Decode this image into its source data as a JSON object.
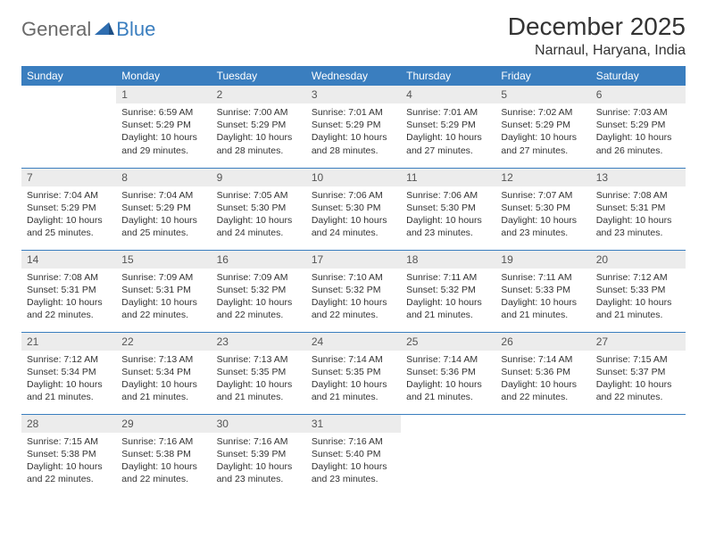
{
  "brand": {
    "part1": "General",
    "part2": "Blue"
  },
  "title": "December 2025",
  "location": "Narnaul, Haryana, India",
  "colors": {
    "header_bg": "#3a7ebf",
    "header_fg": "#ffffff",
    "daynum_bg": "#ececec",
    "row_border": "#3a7ebf",
    "logo_gray": "#6a6a6a",
    "logo_blue": "#3a7ebf"
  },
  "weekdays": [
    "Sunday",
    "Monday",
    "Tuesday",
    "Wednesday",
    "Thursday",
    "Friday",
    "Saturday"
  ],
  "weeks": [
    [
      {
        "n": "",
        "sr": "",
        "ss": "",
        "dl": ""
      },
      {
        "n": "1",
        "sr": "6:59 AM",
        "ss": "5:29 PM",
        "dl": "10 hours and 29 minutes."
      },
      {
        "n": "2",
        "sr": "7:00 AM",
        "ss": "5:29 PM",
        "dl": "10 hours and 28 minutes."
      },
      {
        "n": "3",
        "sr": "7:01 AM",
        "ss": "5:29 PM",
        "dl": "10 hours and 28 minutes."
      },
      {
        "n": "4",
        "sr": "7:01 AM",
        "ss": "5:29 PM",
        "dl": "10 hours and 27 minutes."
      },
      {
        "n": "5",
        "sr": "7:02 AM",
        "ss": "5:29 PM",
        "dl": "10 hours and 27 minutes."
      },
      {
        "n": "6",
        "sr": "7:03 AM",
        "ss": "5:29 PM",
        "dl": "10 hours and 26 minutes."
      }
    ],
    [
      {
        "n": "7",
        "sr": "7:04 AM",
        "ss": "5:29 PM",
        "dl": "10 hours and 25 minutes."
      },
      {
        "n": "8",
        "sr": "7:04 AM",
        "ss": "5:29 PM",
        "dl": "10 hours and 25 minutes."
      },
      {
        "n": "9",
        "sr": "7:05 AM",
        "ss": "5:30 PM",
        "dl": "10 hours and 24 minutes."
      },
      {
        "n": "10",
        "sr": "7:06 AM",
        "ss": "5:30 PM",
        "dl": "10 hours and 24 minutes."
      },
      {
        "n": "11",
        "sr": "7:06 AM",
        "ss": "5:30 PM",
        "dl": "10 hours and 23 minutes."
      },
      {
        "n": "12",
        "sr": "7:07 AM",
        "ss": "5:30 PM",
        "dl": "10 hours and 23 minutes."
      },
      {
        "n": "13",
        "sr": "7:08 AM",
        "ss": "5:31 PM",
        "dl": "10 hours and 23 minutes."
      }
    ],
    [
      {
        "n": "14",
        "sr": "7:08 AM",
        "ss": "5:31 PM",
        "dl": "10 hours and 22 minutes."
      },
      {
        "n": "15",
        "sr": "7:09 AM",
        "ss": "5:31 PM",
        "dl": "10 hours and 22 minutes."
      },
      {
        "n": "16",
        "sr": "7:09 AM",
        "ss": "5:32 PM",
        "dl": "10 hours and 22 minutes."
      },
      {
        "n": "17",
        "sr": "7:10 AM",
        "ss": "5:32 PM",
        "dl": "10 hours and 22 minutes."
      },
      {
        "n": "18",
        "sr": "7:11 AM",
        "ss": "5:32 PM",
        "dl": "10 hours and 21 minutes."
      },
      {
        "n": "19",
        "sr": "7:11 AM",
        "ss": "5:33 PM",
        "dl": "10 hours and 21 minutes."
      },
      {
        "n": "20",
        "sr": "7:12 AM",
        "ss": "5:33 PM",
        "dl": "10 hours and 21 minutes."
      }
    ],
    [
      {
        "n": "21",
        "sr": "7:12 AM",
        "ss": "5:34 PM",
        "dl": "10 hours and 21 minutes."
      },
      {
        "n": "22",
        "sr": "7:13 AM",
        "ss": "5:34 PM",
        "dl": "10 hours and 21 minutes."
      },
      {
        "n": "23",
        "sr": "7:13 AM",
        "ss": "5:35 PM",
        "dl": "10 hours and 21 minutes."
      },
      {
        "n": "24",
        "sr": "7:14 AM",
        "ss": "5:35 PM",
        "dl": "10 hours and 21 minutes."
      },
      {
        "n": "25",
        "sr": "7:14 AM",
        "ss": "5:36 PM",
        "dl": "10 hours and 21 minutes."
      },
      {
        "n": "26",
        "sr": "7:14 AM",
        "ss": "5:36 PM",
        "dl": "10 hours and 22 minutes."
      },
      {
        "n": "27",
        "sr": "7:15 AM",
        "ss": "5:37 PM",
        "dl": "10 hours and 22 minutes."
      }
    ],
    [
      {
        "n": "28",
        "sr": "7:15 AM",
        "ss": "5:38 PM",
        "dl": "10 hours and 22 minutes."
      },
      {
        "n": "29",
        "sr": "7:16 AM",
        "ss": "5:38 PM",
        "dl": "10 hours and 22 minutes."
      },
      {
        "n": "30",
        "sr": "7:16 AM",
        "ss": "5:39 PM",
        "dl": "10 hours and 23 minutes."
      },
      {
        "n": "31",
        "sr": "7:16 AM",
        "ss": "5:40 PM",
        "dl": "10 hours and 23 minutes."
      },
      {
        "n": "",
        "sr": "",
        "ss": "",
        "dl": ""
      },
      {
        "n": "",
        "sr": "",
        "ss": "",
        "dl": ""
      },
      {
        "n": "",
        "sr": "",
        "ss": "",
        "dl": ""
      }
    ]
  ],
  "labels": {
    "sunrise": "Sunrise: ",
    "sunset": "Sunset: ",
    "daylight": "Daylight: "
  }
}
